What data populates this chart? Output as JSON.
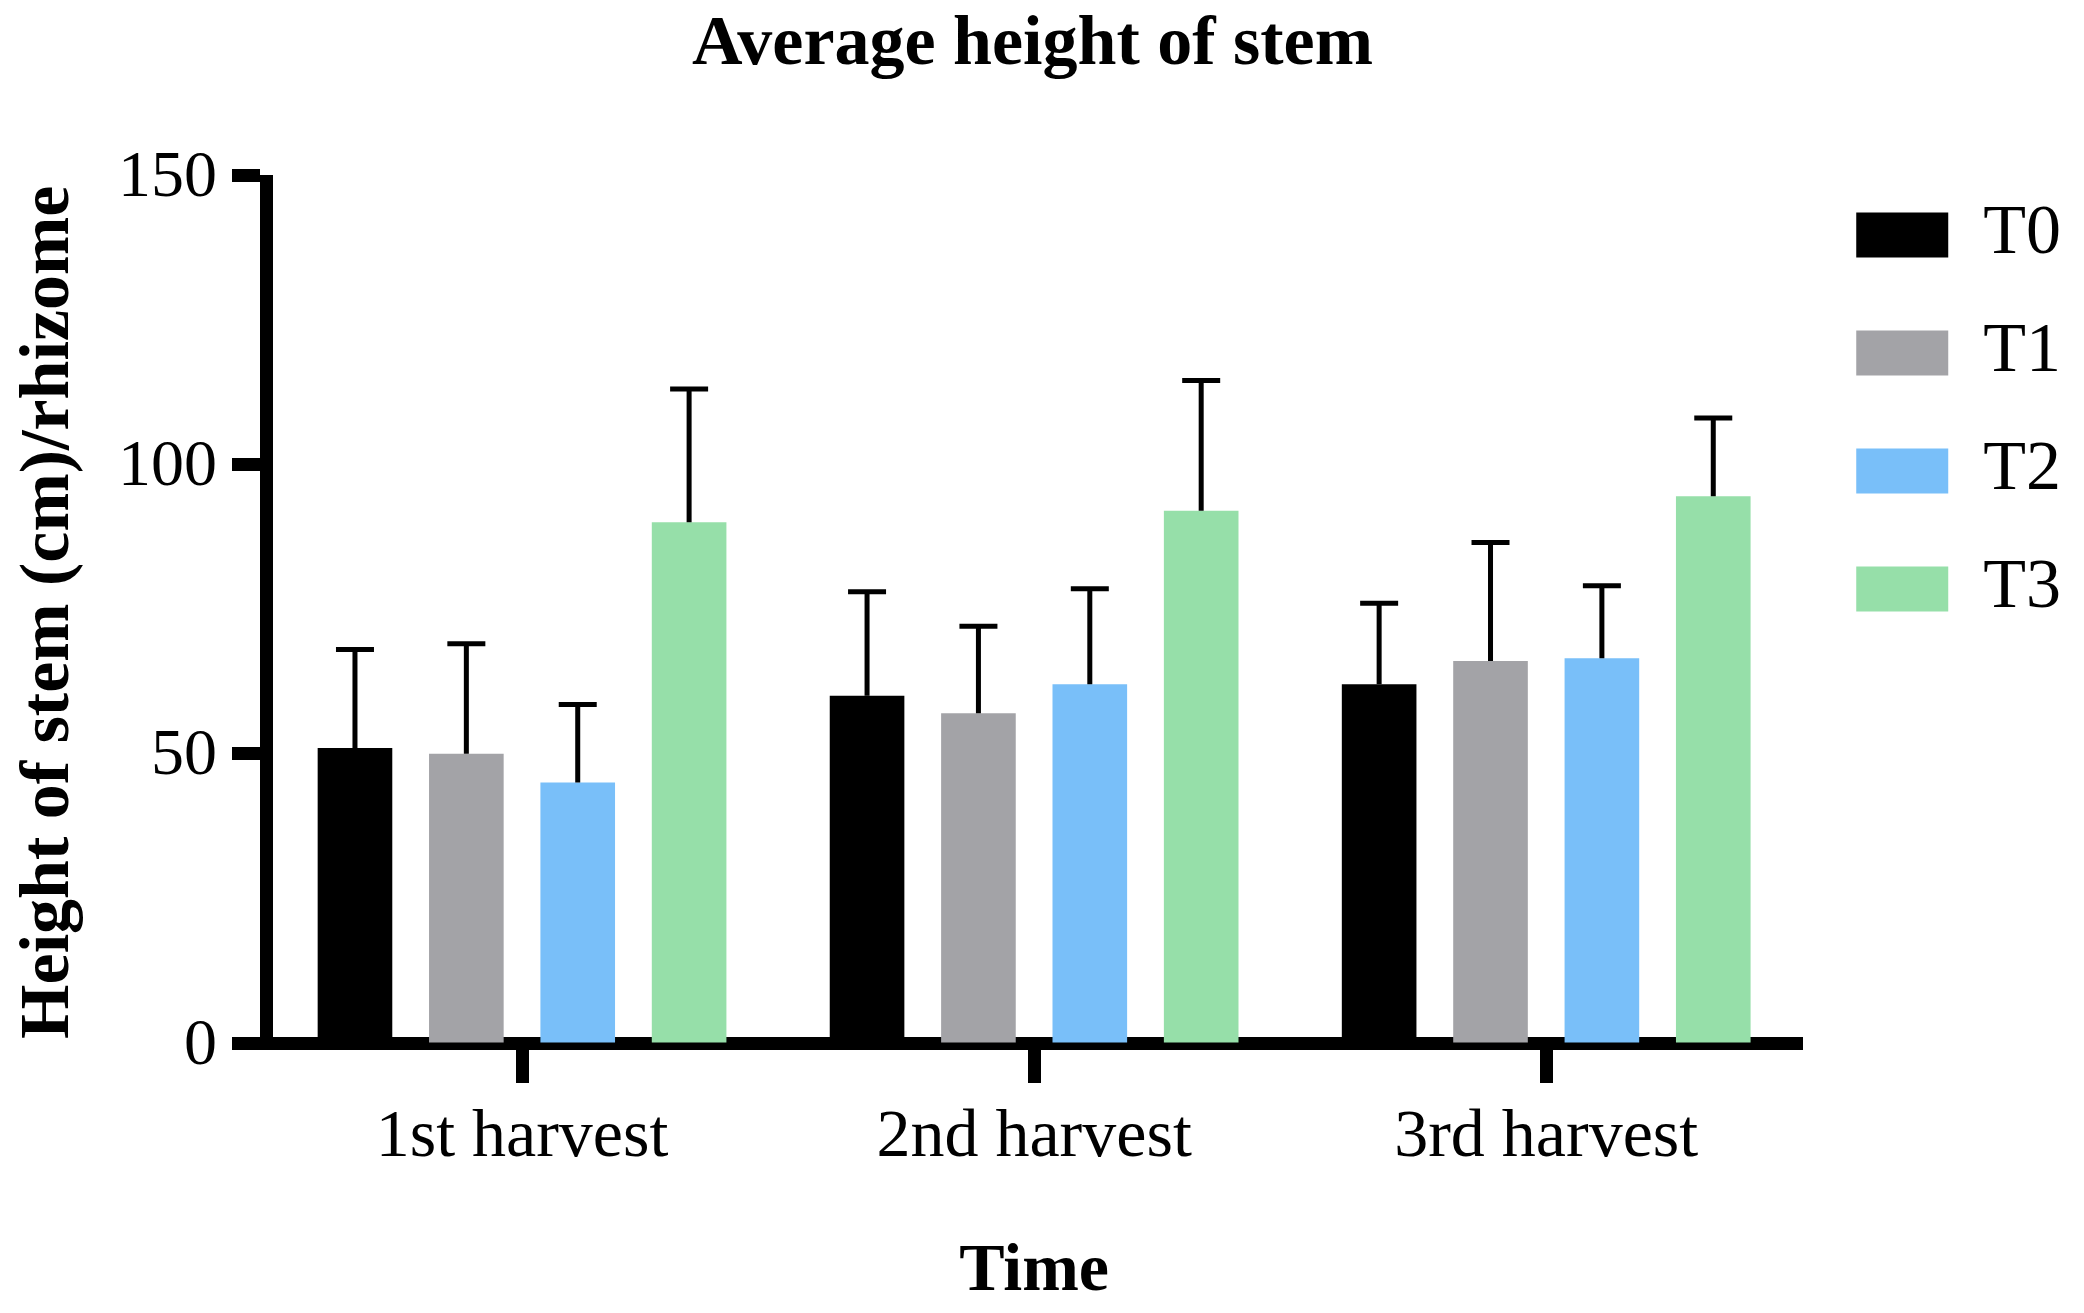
{
  "chart_data": {
    "type": "bar",
    "title": "Average height of stem",
    "xlabel": "Time",
    "ylabel": "Height of stem (cm)/rhizome",
    "categories": [
      "1st harvest",
      "2nd harvest",
      "3rd harvest"
    ],
    "series": [
      {
        "name": "T0",
        "color": "#000000",
        "values": [
          51,
          60,
          62
        ],
        "errors": [
          [
            51,
            68
          ],
          [
            60,
            78
          ],
          [
            62,
            76
          ]
        ]
      },
      {
        "name": "T1",
        "color": "#a3a3a7",
        "values": [
          50,
          57,
          66
        ],
        "errors": [
          [
            50,
            69
          ],
          [
            57,
            72
          ],
          [
            66,
            86.5
          ]
        ]
      },
      {
        "name": "T2",
        "color": "#79bff9",
        "values": [
          45,
          62,
          66.5
        ],
        "errors": [
          [
            45,
            58.5
          ],
          [
            62,
            78.5
          ],
          [
            66.5,
            79
          ]
        ]
      },
      {
        "name": "T3",
        "color": "#96dfa9",
        "values": [
          90,
          92,
          94.5
        ],
        "errors": [
          [
            90,
            113
          ],
          [
            92,
            114.5
          ],
          [
            94.5,
            108
          ]
        ]
      }
    ],
    "ylim": [
      0,
      150
    ],
    "yticks": [
      0,
      50,
      100,
      150
    ],
    "legend": "right"
  }
}
